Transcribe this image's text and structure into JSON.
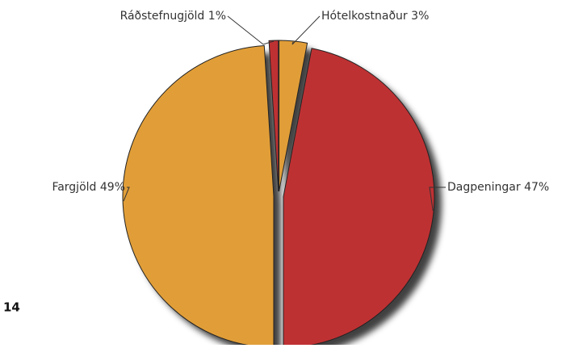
{
  "chart_data": {
    "type": "pie",
    "categories": [
      "Hótelkostnaður",
      "Dagpeningar",
      "Fargjöld",
      "Ráðstefnugjöld"
    ],
    "values": [
      3,
      47,
      49,
      1
    ],
    "value_labels": [
      "3%",
      "47%",
      "49%",
      "1%"
    ],
    "colors": [
      "#e19e38",
      "#be3133",
      "#e19e38",
      "#be3133"
    ]
  },
  "page_number": "14"
}
